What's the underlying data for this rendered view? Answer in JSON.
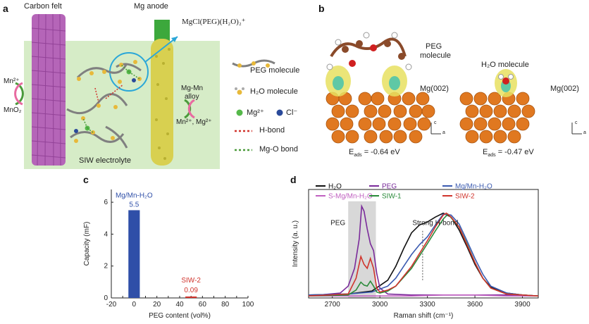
{
  "panels": {
    "a": {
      "letter": "a",
      "carbon_felt": "Carbon felt",
      "mg_anode": "Mg anode",
      "complex_formula": "MgCl(PEG)(H₂O)₂⁺",
      "mn2": "Mn²⁺",
      "mno2": "MnO₂",
      "alloy_line1": "Mg-Mn",
      "alloy_line2": "alloy",
      "ions_right": "Mn²⁺,  Mg²⁺",
      "electrolyte": "SIW electrolyte",
      "legend": {
        "peg": "PEG molecule",
        "h2o": "H₂O molecule",
        "mg": "Mg²⁺",
        "cl": "Cl⁻",
        "hbond": "H-bond",
        "mgo": "Mg-O bond"
      },
      "colors": {
        "felt": "#b565b8",
        "anode": "#d8d050",
        "bg": "#d6ecc7",
        "mg_ion": "#55b84a",
        "cl_ion": "#2a4a9a",
        "h2o": "#e8b93a",
        "hbond": "#d0342c",
        "mgo_bond": "#4a9a3a"
      }
    },
    "b": {
      "letter": "b",
      "peg_label_1": "PEG",
      "peg_label_2": "molecule",
      "h2o_label": "H₂O molecule",
      "surface_left": "Mg(002)",
      "surface_right": "Mg(002)",
      "eads_left": "E",
      "eads_sub": "ads",
      "eads_left_val": " = -0.64 eV",
      "eads_right_val": " = -0.47 eV",
      "axis_c": "c",
      "axis_a": "a"
    },
    "c": {
      "letter": "c",
      "ylabel": "Capacity (mF)",
      "xlabel": "PEG content (vol%)",
      "bar1_name": "Mg/Mn-H₂O",
      "bar1_value_label": "5.5",
      "bar2_name": "SIW-2",
      "bar2_value_label": "0.09"
    },
    "d": {
      "letter": "d",
      "ylabel": "Intensity (a. u.)",
      "xlabel": "Raman shift (cm⁻¹)",
      "peg_region": "PEG",
      "strong_hbond": "Strong H-bond",
      "legend": [
        "H₂O",
        "PEG",
        "Mg/Mn-H₂O",
        "S-Mg/Mn-H₂O",
        "SIW-1",
        "SIW-2"
      ]
    }
  },
  "chart_data": [
    {
      "type": "bar",
      "panel": "c",
      "ylabel": "Capacity (mF)",
      "xlabel": "PEG content (vol%)",
      "x": [
        0,
        50
      ],
      "values": [
        5.5,
        0.09
      ],
      "labels": [
        "Mg/Mn-H₂O",
        "SIW-2"
      ],
      "colors": [
        "#2f4fa8",
        "#d0342c"
      ],
      "xlim": [
        -20,
        100
      ],
      "ylim": [
        0,
        6.8
      ],
      "xticks": [
        -20,
        -10,
        0,
        10,
        20,
        30,
        40,
        50,
        60,
        70,
        80,
        90,
        100
      ],
      "yticks": [
        0,
        2,
        4,
        6
      ]
    },
    {
      "type": "line",
      "panel": "d",
      "xlabel": "Raman shift (cm⁻¹)",
      "ylabel": "Intensity (a. u.)",
      "xlim": [
        2550,
        4000
      ],
      "ylim": [
        0,
        1.1
      ],
      "xticks": [
        2700,
        3000,
        3300,
        3600,
        3900
      ],
      "series": [
        {
          "name": "H₂O",
          "color": "#111111",
          "x": [
            2550,
            2800,
            2950,
            3050,
            3100,
            3150,
            3200,
            3250,
            3300,
            3350,
            3400,
            3450,
            3500,
            3550,
            3600,
            3650,
            3700,
            3800,
            3900,
            4000
          ],
          "y": [
            0.03,
            0.04,
            0.07,
            0.18,
            0.32,
            0.5,
            0.66,
            0.74,
            0.77,
            0.82,
            0.86,
            0.82,
            0.69,
            0.52,
            0.34,
            0.2,
            0.11,
            0.05,
            0.03,
            0.02
          ]
        },
        {
          "name": "PEG",
          "color": "#7a2a9a",
          "x": [
            2550,
            2750,
            2800,
            2840,
            2870,
            2885,
            2900,
            2920,
            2940,
            2960,
            2980,
            3000,
            3050,
            3200,
            3500,
            3800,
            4000
          ],
          "y": [
            0.02,
            0.05,
            0.12,
            0.3,
            0.6,
            0.93,
            0.88,
            0.7,
            0.55,
            0.48,
            0.25,
            0.1,
            0.04,
            0.03,
            0.03,
            0.03,
            0.02
          ]
        },
        {
          "name": "Mg/Mn-H₂O",
          "color": "#3a5ab0",
          "x": [
            2550,
            2800,
            2950,
            3050,
            3100,
            3150,
            3200,
            3250,
            3300,
            3350,
            3400,
            3450,
            3500,
            3550,
            3600,
            3650,
            3700,
            3800,
            3900,
            4000
          ],
          "y": [
            0.03,
            0.04,
            0.06,
            0.12,
            0.2,
            0.32,
            0.44,
            0.54,
            0.62,
            0.74,
            0.85,
            0.84,
            0.75,
            0.58,
            0.4,
            0.24,
            0.12,
            0.05,
            0.03,
            0.02
          ]
        },
        {
          "name": "S-Mg/Mn-H₂O",
          "color": "#c060c0",
          "x": [
            2550,
            2800,
            3000,
            3200,
            3400,
            3600,
            3800,
            4000
          ],
          "y": [
            0.02,
            0.02,
            0.02,
            0.02,
            0.03,
            0.03,
            0.02,
            0.02
          ]
        },
        {
          "name": "SIW-1",
          "color": "#2a8a3a",
          "x": [
            2550,
            2800,
            2850,
            2880,
            2900,
            2920,
            2940,
            2960,
            2980,
            3000,
            3050,
            3100,
            3200,
            3300,
            3350,
            3400,
            3430,
            3500,
            3550,
            3600,
            3650,
            3700,
            3800,
            3900,
            4000
          ],
          "y": [
            0.02,
            0.03,
            0.08,
            0.16,
            0.13,
            0.12,
            0.17,
            0.12,
            0.06,
            0.05,
            0.07,
            0.12,
            0.3,
            0.55,
            0.68,
            0.8,
            0.85,
            0.72,
            0.55,
            0.36,
            0.2,
            0.1,
            0.04,
            0.03,
            0.02
          ]
        },
        {
          "name": "SIW-2",
          "color": "#d0342c",
          "x": [
            2550,
            2800,
            2850,
            2880,
            2900,
            2920,
            2940,
            2960,
            2980,
            3000,
            3050,
            3100,
            3200,
            3300,
            3350,
            3400,
            3420,
            3450,
            3500,
            3550,
            3600,
            3650,
            3700,
            3800,
            3900,
            4000
          ],
          "y": [
            0.02,
            0.04,
            0.2,
            0.42,
            0.34,
            0.3,
            0.4,
            0.3,
            0.1,
            0.06,
            0.08,
            0.12,
            0.32,
            0.58,
            0.72,
            0.84,
            0.86,
            0.82,
            0.72,
            0.54,
            0.36,
            0.2,
            0.1,
            0.04,
            0.03,
            0.02
          ]
        }
      ]
    }
  ]
}
